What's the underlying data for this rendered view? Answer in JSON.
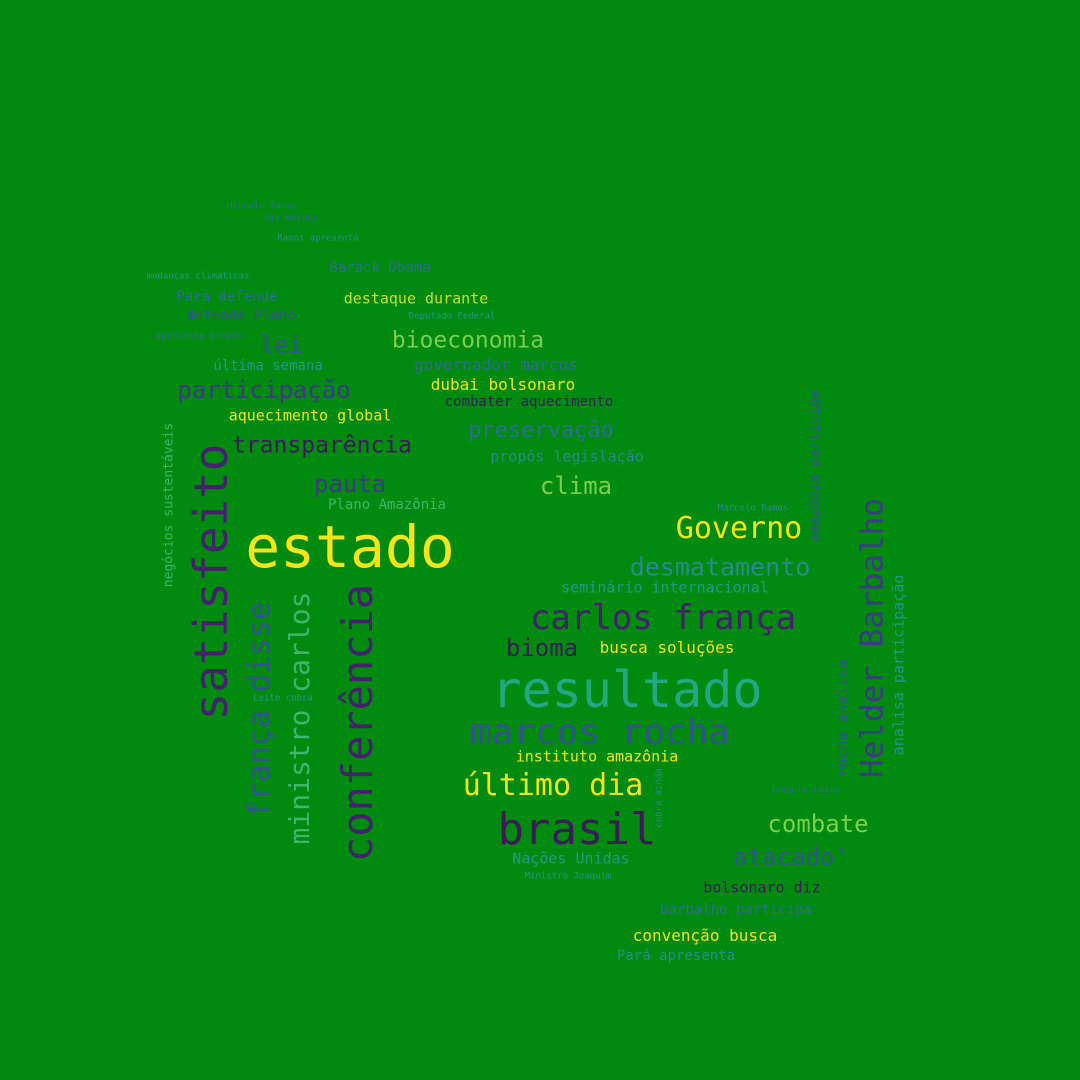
{
  "words": {
    "w1": "estado",
    "w2": "satisfeito",
    "w3": "resultado",
    "w4": "conferência",
    "w5": "brasil",
    "w6": "carlos frança",
    "w7": "marcos rocha",
    "w8": "Helder Barbalho",
    "w9": "Governo",
    "w10": "último dia",
    "w11": "frança disse",
    "w12": "ministro carlos",
    "w13": "desmatamento",
    "w14": "combate",
    "w15": "participação",
    "w16": "transparência",
    "w17": "bioeconomia",
    "w18": "preservação",
    "w19": "clima",
    "w20": "pauta",
    "w21": "bioma",
    "w22": "lei",
    "w23": "atacado'",
    "w24": "busca soluções",
    "w25": "instituto amazônia",
    "w26": "seminário internacional",
    "w27": "governador marcos",
    "w28": "dubai bolsonaro",
    "w29": "combater aquecimento",
    "w30": "aquecimento global",
    "w31": "destaque durante",
    "w32": "propôs legislação",
    "w33": "Plano Amazônia",
    "w34": "Nações Unidas",
    "w35": "bolsonaro diz",
    "w36": "convenção busca",
    "w37": "Pará apresenta",
    "w38": "barbalho participa",
    "w39": "analisa participação",
    "w40": "rocha analisa",
    "w41": "amazônia participa",
    "w42": "negócios sustentáveis",
    "w43": "última semana",
    "w44": "Pará defende",
    "w45": "defende Plano",
    "w46": "Barack Obama",
    "w47": "Marcelo Ramos",
    "w48": "Joaquim Leite",
    "w49": "Ministro Joaquim",
    "w50": "Deputado Federal",
    "w51": "mudanças climáticas",
    "w52": "Leite cobra",
    "w53": "cobra ainda",
    "w54": "Ramos apresenta",
    "w55": "Marcelo Ramos",
    "w56": "diz Helder",
    "w57": "apresenta propôs"
  },
  "colors": {
    "background": "#008a10",
    "palette": [
      "#f3e51c",
      "#c8df2a",
      "#7ccf4a",
      "#3fb56e",
      "#22a884",
      "#1f9a8a",
      "#2a8a8c",
      "#2c6c8e",
      "#33538d",
      "#3e3a85",
      "#45206c",
      "#3b1c55"
    ]
  }
}
